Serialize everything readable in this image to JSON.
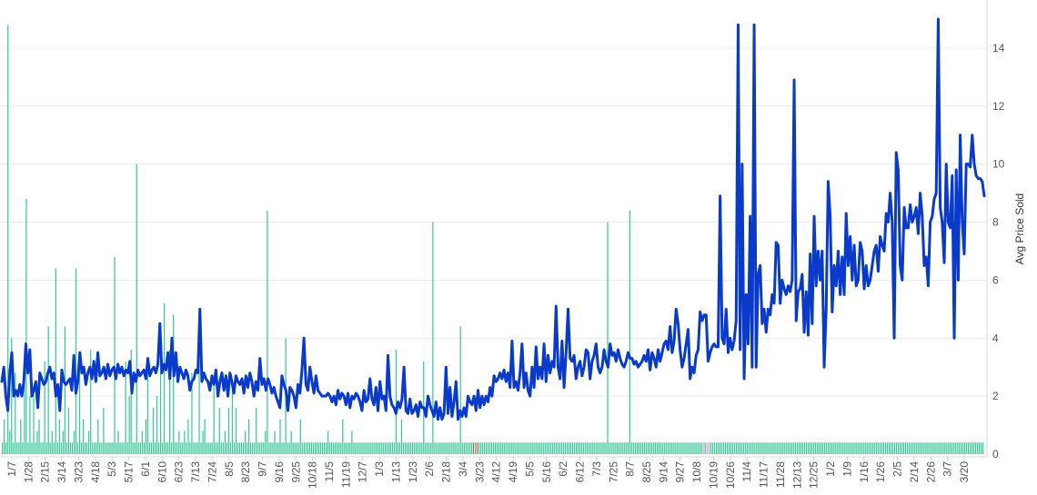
{
  "chart_data": {
    "type": "line",
    "title": "",
    "xlabel": "",
    "ylabel": "Avg Price Sold",
    "ylim": [
      0,
      15.5
    ],
    "y_ticks": [
      0,
      2,
      4,
      6,
      8,
      10,
      12,
      14
    ],
    "grid": true,
    "legend": "none",
    "x_tick_labels": [
      "1/7",
      "1/28",
      "2/15",
      "3/14",
      "3/23",
      "4/18",
      "5/3",
      "5/17",
      "6/1",
      "6/10",
      "6/23",
      "7/13",
      "7/24",
      "8/5",
      "8/23",
      "9/7",
      "9/16",
      "9/25",
      "10/18",
      "11/5",
      "11/19",
      "12/7",
      "1/3",
      "1/13",
      "1/23",
      "2/6",
      "2/18",
      "3/4",
      "3/23",
      "4/12",
      "4/19",
      "5/5",
      "5/16",
      "6/2",
      "6/12",
      "7/3",
      "7/25",
      "8/7",
      "8/25",
      "9/14",
      "9/27",
      "10/8",
      "10/19",
      "10/26",
      "11/4",
      "11/17",
      "11/28",
      "12/13",
      "12/25",
      "1/2",
      "1/9",
      "1/16",
      "1/26",
      "2/5",
      "2/14",
      "2/26",
      "3/7",
      "3/20"
    ],
    "colors": {
      "line": "#0a3ac9",
      "bars": "#3cc79a",
      "bar_highlight_red": "#e05050",
      "bar_highlight_pink": "#d9a3c8"
    },
    "line_series": {
      "name": "",
      "values": [
        2.5,
        3.0,
        2.0,
        1.5,
        2.8,
        3.5,
        2.0,
        2.2,
        2.0,
        2.4,
        2.0,
        2.5,
        3.8,
        2.8,
        3.6,
        2.0,
        2.2,
        2.5,
        1.6,
        2.8,
        2.6,
        2.4,
        2.5,
        2.8,
        3.0,
        2.6,
        2.8,
        2.0,
        2.4,
        1.5,
        2.9,
        2.5,
        2.4,
        2.5,
        2.6,
        2.2,
        3.4,
        2.1,
        2.5,
        3.5,
        2.8,
        3.0,
        2.4,
        2.8,
        3.0,
        2.6,
        3.2,
        2.5,
        3.5,
        2.7,
        2.8,
        3.0,
        2.6,
        3.1,
        2.7,
        2.9,
        3.0,
        2.6,
        3.1,
        2.8,
        3.0,
        2.7,
        2.9,
        2.8,
        3.2,
        2.1,
        2.8,
        2.5,
        2.9,
        2.7,
        2.8,
        2.9,
        2.6,
        3.3,
        2.7,
        2.9,
        3.0,
        2.8,
        3.1,
        4.5,
        2.8,
        3.1,
        2.9,
        3.5,
        2.6,
        4.0,
        2.7,
        3.5,
        2.5,
        3.0,
        2.8,
        2.6,
        2.9,
        2.7,
        2.2,
        2.5,
        2.6,
        2.9,
        2.8,
        5.0,
        2.5,
        2.8,
        2.6,
        2.5,
        2.2,
        2.7,
        2.4,
        2.9,
        2.0,
        2.5,
        2.8,
        2.2,
        2.7,
        2.0,
        2.8,
        2.5,
        2.1,
        2.7,
        2.5,
        2.4,
        2.6,
        2.1,
        2.7,
        2.3,
        2.8,
        2.5,
        2.0,
        2.5,
        2.2,
        3.3,
        2.4,
        2.6,
        2.2,
        2.6,
        2.4,
        2.1,
        2.3,
        2.0,
        1.8,
        1.6,
        2.7,
        2.4,
        2.2,
        1.5,
        2.3,
        2.2,
        2.0,
        1.6,
        2.4,
        2.1,
        2.9,
        4.0,
        2.4,
        2.2,
        3.0,
        2.5,
        2.1,
        2.7,
        2.2,
        2.1,
        2.0,
        2.0,
        2.0,
        2.1,
        2.0,
        1.8,
        2.0,
        1.7,
        2.2,
        1.9,
        2.1,
        2.0,
        1.7,
        2.1,
        1.6,
        2.0,
        1.9,
        2.1,
        2.0,
        1.8,
        1.5,
        2.2,
        1.8,
        1.9,
        2.6,
        1.9,
        1.7,
        2.3,
        1.5,
        2.5,
        1.9,
        2.0,
        1.5,
        3.4,
        2.0,
        1.7,
        1.6,
        1.4,
        1.8,
        1.6,
        1.9,
        3.0,
        1.5,
        1.4,
        1.9,
        1.4,
        1.5,
        1.7,
        1.3,
        1.8,
        1.6,
        1.6,
        1.3,
        2.0,
        1.7,
        1.5,
        1.3,
        1.8,
        1.2,
        1.6,
        1.2,
        1.4,
        3.0,
        1.4,
        2.3,
        1.3,
        1.8,
        2.5,
        1.2,
        1.5,
        1.3,
        1.6,
        1.3,
        2.0,
        1.8,
        1.7,
        2.0,
        1.5,
        2.2,
        1.6,
        2.0,
        1.7,
        2.0,
        1.8,
        2.3,
        2.0,
        2.7,
        2.5,
        2.6,
        2.8,
        2.6,
        2.9,
        2.5,
        2.8,
        2.3,
        3.9,
        2.3,
        2.5,
        2.2,
        2.8,
        3.8,
        2.3,
        2.8,
        2.2,
        2.0,
        3.0,
        2.3,
        3.7,
        2.6,
        3.0,
        2.6,
        3.8,
        2.5,
        3.4,
        2.8,
        3.2,
        3.0,
        5.1,
        3.0,
        2.6,
        3.9,
        2.3,
        3.5,
        5.0,
        3.3,
        3.2,
        3.4,
        2.6,
        3.0,
        3.2,
        2.7,
        3.0,
        3.6,
        3.5,
        2.6,
        3.2,
        3.4,
        3.8,
        3.0,
        2.8,
        3.0,
        3.6,
        3.2,
        3.0,
        3.8,
        3.4,
        3.5,
        3.2,
        3.6,
        3.3,
        3.1,
        3.0,
        3.2,
        3.5,
        3.3,
        3.3,
        3.1,
        3.2,
        3.0,
        3.1,
        3.2,
        3.4,
        3.2,
        3.6,
        2.9,
        3.5,
        3.3,
        3.0,
        3.6,
        3.2,
        3.5,
        3.8,
        3.9,
        3.6,
        4.4,
        3.5,
        3.9,
        5.0,
        4.5,
        3.6,
        3.0,
        3.3,
        3.8,
        4.3,
        2.6,
        3.0,
        2.8,
        3.4,
        3.6,
        4.9,
        4.6,
        4.8,
        4.8,
        3.2,
        3.5,
        3.7,
        3.8,
        3.7,
        3.7,
        8.9,
        4.0,
        3.8,
        5.0,
        3.5,
        4.0,
        3.6,
        3.9,
        4.6,
        14.8,
        3.6,
        10.0,
        2.6,
        5.5,
        3.8,
        8.2,
        3.0,
        14.8,
        3.0,
        6.2,
        6.5,
        4.5,
        5.0,
        4.2,
        5.0,
        4.8,
        5.5,
        5.2,
        7.3,
        7.2,
        5.2,
        6.0,
        5.7,
        5.5,
        5.8,
        5.6,
        6.0,
        12.9,
        4.6,
        5.6,
        5.7,
        6.2,
        4.2,
        5.6,
        4.1,
        6.9,
        4.5,
        8.2,
        5.8,
        7.0,
        6.0,
        7.0,
        3.0,
        5.0,
        9.4,
        8.2,
        4.9,
        6.5,
        5.8,
        7.0,
        5.5,
        6.8,
        5.5,
        8.3,
        6.5,
        7.5,
        6.0,
        7.2,
        5.8,
        6.0,
        7.3,
        7.0,
        5.7,
        6.5,
        5.8,
        6.0,
        6.5,
        7.0,
        7.2,
        6.3,
        7.5,
        7.2,
        7.0,
        8.3,
        8.0,
        9.0,
        8.0,
        4.0,
        10.4,
        9.8,
        6.5,
        6.0,
        8.5,
        7.8,
        7.8,
        8.6,
        8.0,
        8.2,
        8.5,
        7.6,
        9.0,
        8.2,
        6.5,
        6.8,
        5.8,
        8.0,
        8.2,
        8.8,
        9.0,
        15.0,
        8.5,
        8.0,
        6.6,
        10.0,
        8.0,
        7.8,
        9.6,
        4.0,
        9.8,
        6.0,
        11.0,
        8.0,
        6.9,
        10.0,
        10.0,
        9.9,
        11.0,
        10.0,
        9.6,
        9.5,
        9.5,
        9.4,
        8.9
      ]
    },
    "bar_series": {
      "name": "",
      "values": [
        0.4,
        1.2,
        0.4,
        14.8,
        0.8,
        4.0,
        0.4,
        2.8,
        0.4,
        0.4,
        1.2,
        0.4,
        3.2,
        8.8,
        0.4,
        2.0,
        0.4,
        2.4,
        0.4,
        0.8,
        1.2,
        0.4,
        0.4,
        3.2,
        0.4,
        4.4,
        0.4,
        0.8,
        0.4,
        6.4,
        0.4,
        1.2,
        0.4,
        0.8,
        4.4,
        0.4,
        1.6,
        0.4,
        0.4,
        0.8,
        6.4,
        0.4,
        3.2,
        0.4,
        1.2,
        0.4,
        0.4,
        0.8,
        3.6,
        0.4,
        0.4,
        0.4,
        1.2,
        0.4,
        0.4,
        1.6,
        0.4,
        0.4,
        0.4,
        0.4,
        0.4,
        6.8,
        0.4,
        0.8,
        0.4,
        0.4,
        0.4,
        3.2,
        0.4,
        2.0,
        3.6,
        0.4,
        0.4,
        10.0,
        0.4,
        0.4,
        0.8,
        0.4,
        1.2,
        3.2,
        0.4,
        0.4,
        1.6,
        0.4,
        2.0,
        0.4,
        3.2,
        0.4,
        5.2,
        0.4,
        0.4,
        3.6,
        0.4,
        4.8,
        0.4,
        0.4,
        0.8,
        0.4,
        0.4,
        0.8,
        0.4,
        1.2,
        0.4,
        2.8,
        0.4,
        0.4,
        0.4,
        3.2,
        0.4,
        0.8,
        1.2,
        0.4,
        0.4,
        0.4,
        0.4,
        2.4,
        0.4,
        0.4,
        1.6,
        0.4,
        0.4,
        0.8,
        0.4,
        1.6,
        0.4,
        2.4,
        0.4,
        1.6,
        0.4,
        0.4,
        0.4,
        0.4,
        0.8,
        0.4,
        1.2,
        0.4,
        0.4,
        0.4,
        1.6,
        0.4,
        0.4,
        0.4,
        0.4,
        0.8,
        8.4,
        0.4,
        0.4,
        0.4,
        0.8,
        0.4,
        0.4,
        1.2,
        0.4,
        0.4,
        4.0,
        0.4,
        0.4,
        0.8,
        0.4,
        0.4,
        0.4,
        0.4,
        1.2,
        0.4,
        0.4,
        0.4,
        0.4,
        0.4,
        0.4,
        0.4,
        0.4,
        0.4,
        0.4,
        0.4,
        0.4,
        0.4,
        0.4,
        0.8,
        0.4,
        0.4,
        0.4,
        0.4,
        0.4,
        0.4,
        0.4,
        1.2,
        0.4,
        0.4,
        0.4,
        0.4,
        0.8,
        0.4,
        0.4,
        0.4,
        0.4,
        0.4,
        0.4,
        0.4,
        0.4,
        0.4,
        0.4,
        0.4,
        0.4,
        0.4,
        0.4,
        0.4,
        0.4,
        0.4,
        0.4,
        0.4,
        0.4,
        0.4,
        0.4,
        0.4,
        3.6,
        0.4,
        0.4,
        1.2,
        0.4,
        0.4,
        0.4,
        0.4,
        0.4,
        0.4,
        0.4,
        0.4,
        0.4,
        0.4,
        0.4,
        3.2,
        0.4,
        0.4,
        0.4,
        0.4,
        8.0,
        0.4,
        0.4,
        0.4,
        0.4,
        0.4,
        0.4,
        0.4,
        0.4,
        0.4,
        0.4,
        0.4,
        0.4,
        0.4,
        0.4,
        4.4,
        0.4,
        0.4,
        0.4,
        0.4,
        0.4,
        0.4,
        0.4,
        0.4,
        0.4,
        0.4,
        0.4,
        0.4,
        0.4,
        0.4,
        0.4,
        0.4,
        0.4,
        0.4,
        0.4,
        0.4,
        0.4,
        0.4,
        0.4,
        0.4,
        0.4,
        0.4,
        0.4,
        0.4,
        0.4,
        0.4,
        0.4,
        0.4,
        0.4,
        0.4,
        0.4,
        0.4,
        0.4,
        0.4,
        0.4,
        0.4,
        0.4,
        0.4,
        0.4,
        0.4,
        0.4,
        0.4,
        0.4,
        0.4,
        0.4,
        0.4,
        0.4,
        0.4,
        0.4,
        0.4,
        0.4,
        0.4,
        0.4,
        0.4,
        0.4,
        0.4,
        0.4,
        0.4,
        0.4,
        0.4,
        0.4,
        0.4,
        0.4,
        0.4,
        0.4,
        0.4,
        0.4,
        0.4,
        0.4,
        0.4,
        0.4,
        0.4,
        0.4,
        0.4,
        0.4,
        8.0,
        0.4,
        0.4,
        0.4,
        0.4,
        0.4,
        0.4,
        0.4,
        0.4,
        0.4,
        0.4,
        0.4,
        8.4,
        0.4,
        0.4,
        0.4,
        0.4,
        0.4,
        0.4,
        0.4,
        0.4,
        0.4,
        0.4,
        0.4,
        0.4,
        0.4,
        0.4,
        0.4,
        0.4,
        0.4,
        0.4,
        0.4,
        0.4,
        0.4,
        0.4,
        0.4,
        0.4,
        0.4,
        0.4,
        0.4,
        0.4,
        0.4,
        0.4,
        0.4,
        0.4,
        0.4,
        0.4,
        0.4,
        0.4,
        0.4,
        0.4,
        0.4,
        0.4,
        0.4,
        0.4,
        0.4,
        0.4,
        0.4,
        0.4,
        0.4,
        0.4,
        0.4,
        0.4,
        0.4,
        0.4,
        0.4,
        0.4,
        0.4,
        0.4,
        0.4,
        0.4,
        0.4,
        0.4,
        0.4,
        0.4,
        0.4,
        0.4,
        0.4,
        0.4,
        0.4,
        0.4,
        0.4,
        0.4,
        0.4,
        0.4,
        0.4,
        0.4,
        0.4,
        0.4,
        0.4,
        0.4,
        0.4,
        0.4,
        0.4,
        0.4,
        0.4,
        0.4,
        0.4,
        0.4,
        0.4,
        0.4,
        0.4,
        0.4,
        0.4,
        0.4,
        0.4,
        0.4,
        0.4,
        0.4,
        0.4,
        0.4,
        0.4,
        0.4,
        0.4,
        0.4,
        0.4,
        0.4,
        0.4,
        0.4,
        0.4,
        0.4,
        0.4,
        0.4,
        0.4,
        0.4,
        0.4,
        0.4,
        0.4,
        0.4,
        0.4,
        0.4,
        0.4,
        0.4,
        0.4,
        0.4,
        0.4,
        0.4,
        0.4,
        0.4,
        0.4,
        0.4,
        0.4,
        0.4,
        0.4,
        0.4,
        0.4,
        0.4,
        0.4,
        0.4,
        0.4,
        0.4,
        0.4,
        0.4,
        0.4,
        0.4,
        0.4,
        0.4,
        0.4,
        0.4,
        0.4,
        0.4,
        0.4,
        0.4,
        0.4,
        0.4,
        0.4,
        0.4,
        0.4,
        0.4,
        0.4,
        0.4,
        0.4,
        0.4,
        0.4,
        0.4,
        0.4,
        0.4,
        0.4,
        0.4,
        0.4,
        0.4,
        0.4,
        0.4,
        0.4,
        0.4,
        0.4,
        0.4,
        0.4,
        0.4,
        0.4,
        0.4,
        0.4,
        0.4,
        0.4,
        0.4,
        0.4,
        0.4,
        0.4,
        0.4,
        0.4,
        0.4,
        0.4,
        0.4,
        0.4,
        0.4
      ]
    }
  }
}
